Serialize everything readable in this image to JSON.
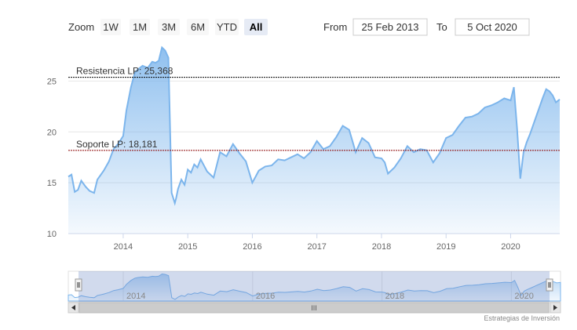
{
  "range_selector": {
    "zoom_label": "Zoom",
    "buttons": [
      "1W",
      "1M",
      "3M",
      "6M",
      "YTD",
      "All"
    ],
    "active": "All",
    "from_label": "From",
    "from_value": "25 Feb 2013",
    "to_label": "To",
    "to_value": "5 Oct 2020"
  },
  "credits": "Estrategias de Inversión",
  "navigator": {
    "year_labels": [
      "2014",
      "2016",
      "2018",
      "2020"
    ],
    "scroll_grip": "III"
  },
  "colors": {
    "line": "#7cb5ec",
    "area_top": "#7cb5ec",
    "resistance": "#000000",
    "support": "#8b0000",
    "grid": "#e6e6e6"
  },
  "chart_data": {
    "type": "area",
    "title": "",
    "xlabel": "",
    "ylabel": "",
    "xlim": [
      2013.15,
      2020.76
    ],
    "ylim": [
      10,
      28.5
    ],
    "yticks": [
      10,
      15,
      20,
      25
    ],
    "xticks": [
      2014,
      2015,
      2016,
      2017,
      2018,
      2019,
      2020
    ],
    "grid": true,
    "legend": "none",
    "series": [
      {
        "x": [
          2013.15,
          2013.2,
          2013.25,
          2013.3,
          2013.35,
          2013.42,
          2013.48,
          2013.55,
          2013.6,
          2013.7,
          2013.78,
          2013.85,
          2013.92,
          2014.0,
          2014.05,
          2014.12,
          2014.18,
          2014.22,
          2014.3,
          2014.38,
          2014.45,
          2014.5,
          2014.55,
          2014.6,
          2014.65,
          2014.7,
          2014.75,
          2014.8,
          2014.82,
          2014.85,
          2014.9,
          2014.95,
          2015.0,
          2015.05,
          2015.1,
          2015.15,
          2015.2,
          2015.3,
          2015.4,
          2015.5,
          2015.6,
          2015.7,
          2015.8,
          2015.9,
          2016.0,
          2016.05,
          2016.1,
          2016.2,
          2016.3,
          2016.4,
          2016.5,
          2016.6,
          2016.7,
          2016.8,
          2016.9,
          2017.0,
          2017.1,
          2017.2,
          2017.3,
          2017.4,
          2017.5,
          2017.6,
          2017.7,
          2017.8,
          2017.9,
          2018.0,
          2018.05,
          2018.1,
          2018.2,
          2018.3,
          2018.4,
          2018.5,
          2018.6,
          2018.7,
          2018.8,
          2018.9,
          2019.0,
          2019.1,
          2019.2,
          2019.3,
          2019.4,
          2019.5,
          2019.6,
          2019.7,
          2019.8,
          2019.9,
          2020.0,
          2020.05,
          2020.1,
          2020.15,
          2020.2,
          2020.25,
          2020.3,
          2020.4,
          2020.5,
          2020.55,
          2020.6,
          2020.65,
          2020.7,
          2020.76
        ],
        "values": [
          15.6,
          15.8,
          14.1,
          14.3,
          15.2,
          14.6,
          14.2,
          14.0,
          15.3,
          16.2,
          17.1,
          18.3,
          18.8,
          19.6,
          22.1,
          24.4,
          25.8,
          26.1,
          26.5,
          26.3,
          26.9,
          26.8,
          27.0,
          28.3,
          28.0,
          27.3,
          14.0,
          13.0,
          13.5,
          14.4,
          15.3,
          14.8,
          16.3,
          16.0,
          16.8,
          16.5,
          17.3,
          16.1,
          15.5,
          18.0,
          17.6,
          18.8,
          17.9,
          17.1,
          15.0,
          15.6,
          16.2,
          16.6,
          16.7,
          17.3,
          17.2,
          17.5,
          17.8,
          17.4,
          18.0,
          19.1,
          18.3,
          18.6,
          19.5,
          20.6,
          20.2,
          18.0,
          19.4,
          18.9,
          17.5,
          17.4,
          17.0,
          15.9,
          16.5,
          17.4,
          18.6,
          18.0,
          18.3,
          18.2,
          17.0,
          17.9,
          19.4,
          19.7,
          20.6,
          21.4,
          21.5,
          21.8,
          22.4,
          22.6,
          22.9,
          23.3,
          23.1,
          24.4,
          20.3,
          15.4,
          18.0,
          19.0,
          19.8,
          21.6,
          23.4,
          24.2,
          24.0,
          23.6,
          22.9,
          23.2
        ]
      }
    ],
    "reference_lines": [
      {
        "label": "Resistencia LP: 25,368",
        "value": 25.368
      },
      {
        "label": "Soporte LP: 18,181",
        "value": 18.181
      }
    ]
  }
}
